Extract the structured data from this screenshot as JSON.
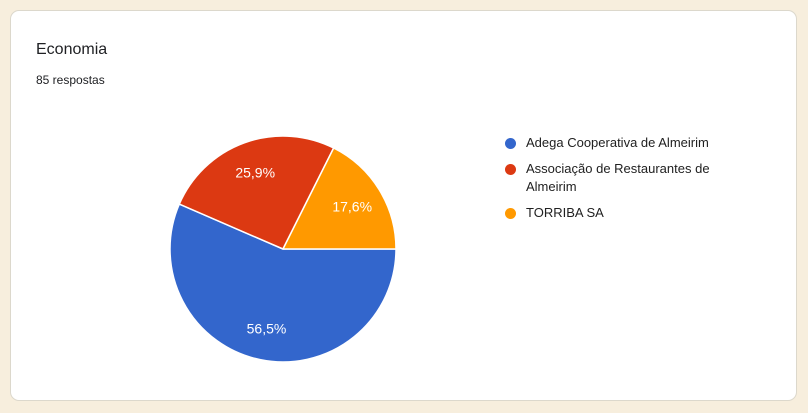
{
  "card": {
    "title": "Economia",
    "responses_text": "85 respostas"
  },
  "theme": {
    "page_background": "#F7EEDD",
    "card_background": "#FFFFFF",
    "card_border": "#DCD8CC",
    "slice_label_color": "#FFFFFF"
  },
  "chart_data": {
    "type": "pie",
    "title": "Economia",
    "total_responses": 85,
    "legend_position": "right",
    "start_angle": "east",
    "direction": "clockwise",
    "series": [
      {
        "name": "Adega Cooperativa de Almeirim",
        "value": 56.5,
        "label": "56,5%",
        "color": "#3366CC"
      },
      {
        "name": "Associação de Restaurantes de Almeirim",
        "value": 25.9,
        "label": "25,9%",
        "color": "#DC3912"
      },
      {
        "name": "TORRIBA SA",
        "value": 17.6,
        "label": "17,6%",
        "color": "#FF9900"
      }
    ]
  }
}
